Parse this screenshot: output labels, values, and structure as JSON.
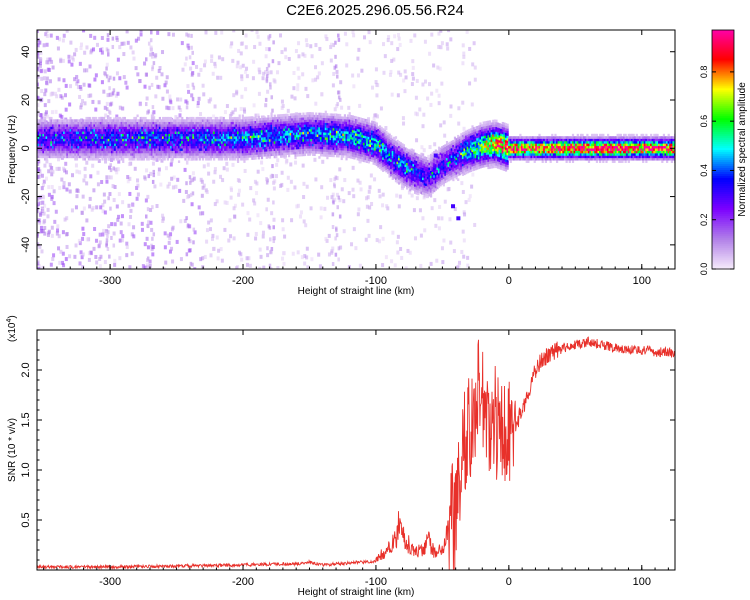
{
  "title": "C2E6.2025.296.05.56.R24",
  "chart_data": [
    {
      "type": "heatmap",
      "name": "spectrogram",
      "xlabel": "Height of straight line (km)",
      "ylabel": "Frequency (Hz)",
      "xlim": [
        -355,
        125
      ],
      "ylim": [
        -50,
        49
      ],
      "xticks": [
        -300,
        -200,
        -100,
        0,
        100
      ],
      "yticks": [
        -40,
        -20,
        0,
        20,
        40
      ],
      "colorbar": {
        "label": "Normalized spectral amplitude",
        "range": [
          0.0,
          0.97
        ],
        "ticks": [
          "0.0",
          "0.2",
          "0.4",
          "0.6",
          "0.8"
        ],
        "tick_values": [
          0.0,
          0.2,
          0.4,
          0.6,
          0.8
        ],
        "colors": [
          "#f5eafa",
          "#b07ee8",
          "#7b00ff",
          "#0000ff",
          "#00ffff",
          "#00ff00",
          "#ffff00",
          "#ff0000",
          "#ff00aa"
        ]
      },
      "ridge": {
        "x": [
          -355,
          -300,
          -250,
          -200,
          -150,
          -120,
          -100,
          -90,
          -80,
          -70,
          -60,
          -50,
          -40,
          -30,
          -20,
          -10,
          0,
          50,
          125
        ],
        "y": [
          4,
          4,
          4,
          4,
          6,
          5,
          2,
          -3,
          -7,
          -10,
          -12,
          -7,
          -4,
          -1,
          1,
          2,
          0,
          0,
          0
        ],
        "amplitude": [
          0.3,
          0.35,
          0.35,
          0.4,
          0.4,
          0.45,
          0.45,
          0.4,
          0.4,
          0.35,
          0.3,
          0.3,
          0.35,
          0.45,
          0.6,
          0.75,
          0.85,
          0.9,
          0.9
        ]
      }
    },
    {
      "type": "line",
      "name": "snr",
      "xlabel": "Height of straight line (km)",
      "ylabel": "SNR (10 * v/v)",
      "yscale_label": "(x10",
      "yscale_exp": "4",
      "yscale_close": ")",
      "xlim": [
        -355,
        125
      ],
      "ylim": [
        0,
        2.4
      ],
      "xticks": [
        -300,
        -200,
        -100,
        0,
        100
      ],
      "yticks": [
        0.5,
        1.0,
        1.5,
        2.0
      ],
      "ytick_labels": [
        "0.5",
        "1.0",
        "1.5",
        "2.0"
      ],
      "color": "#e8302a",
      "series": {
        "name": "SNR",
        "x": [
          -355,
          -300,
          -250,
          -200,
          -180,
          -160,
          -150,
          -140,
          -130,
          -120,
          -110,
          -100,
          -95,
          -90,
          -85,
          -82,
          -80,
          -78,
          -75,
          -70,
          -65,
          -60,
          -55,
          -50,
          -45,
          -40,
          -37,
          -35,
          -32,
          -30,
          -28,
          -25,
          -22,
          -20,
          -18,
          -15,
          -10,
          -5,
          0,
          5,
          10,
          15,
          20,
          25,
          30,
          40,
          50,
          60,
          70,
          80,
          90,
          100,
          110,
          125
        ],
        "y": [
          0.03,
          0.03,
          0.04,
          0.05,
          0.06,
          0.06,
          0.08,
          0.05,
          0.06,
          0.07,
          0.08,
          0.08,
          0.14,
          0.18,
          0.25,
          0.45,
          0.35,
          0.2,
          0.22,
          0.15,
          0.18,
          0.25,
          0.12,
          0.2,
          0.35,
          0.6,
          0.9,
          1.1,
          1.25,
          1.5,
          1.4,
          1.7,
          1.9,
          1.6,
          1.45,
          1.5,
          1.5,
          1.4,
          1.4,
          1.45,
          1.6,
          1.8,
          2.0,
          2.1,
          2.15,
          2.22,
          2.25,
          2.28,
          2.25,
          2.22,
          2.2,
          2.2,
          2.18,
          2.17
        ]
      }
    }
  ]
}
